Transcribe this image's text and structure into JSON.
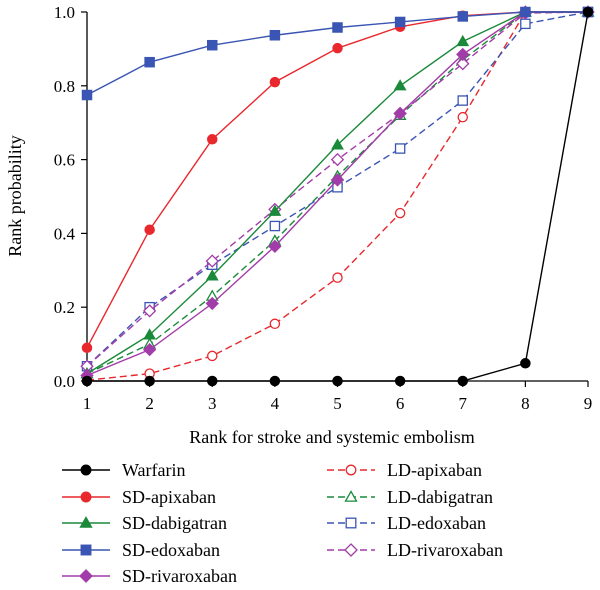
{
  "chart_data": {
    "type": "line",
    "xlabel": "Rank for stroke and systemic embolism",
    "ylabel": "Rank probability",
    "x": [
      1,
      2,
      3,
      4,
      5,
      6,
      7,
      8,
      9
    ],
    "xlim": [
      1,
      9
    ],
    "ylim": [
      0,
      1
    ],
    "x_ticks": [
      "1",
      "2",
      "3",
      "4",
      "5",
      "6",
      "7",
      "8",
      "9"
    ],
    "y_ticks": [
      "0.0",
      "0.2",
      "0.4",
      "0.6",
      "0.8",
      "1.0"
    ],
    "grid": false,
    "legend_position": "bottom",
    "series": [
      {
        "name": "Warfarin",
        "color": "#000000",
        "marker": "circle",
        "filled": true,
        "dashed": false,
        "values": [
          0.0,
          0.0,
          0.0,
          0.0,
          0.0,
          0.0,
          0.0,
          0.048,
          1.0
        ]
      },
      {
        "name": "SD-apixaban",
        "color": "#e8282d",
        "marker": "circle",
        "filled": true,
        "dashed": false,
        "values": [
          0.09,
          0.41,
          0.655,
          0.81,
          0.902,
          0.96,
          0.99,
          1.0,
          1.0
        ]
      },
      {
        "name": "SD-dabigatran",
        "color": "#1a8a3a",
        "marker": "triangle",
        "filled": true,
        "dashed": false,
        "values": [
          0.02,
          0.125,
          0.285,
          0.46,
          0.64,
          0.8,
          0.92,
          1.0,
          1.0
        ]
      },
      {
        "name": "SD-edoxaban",
        "color": "#3a55b4",
        "marker": "square",
        "filled": true,
        "dashed": false,
        "values": [
          0.775,
          0.864,
          0.91,
          0.937,
          0.958,
          0.973,
          0.988,
          1.0,
          1.0
        ]
      },
      {
        "name": "SD-rivaroxaban",
        "color": "#a23ca8",
        "marker": "diamond",
        "filled": true,
        "dashed": false,
        "values": [
          0.015,
          0.085,
          0.21,
          0.365,
          0.545,
          0.725,
          0.885,
          1.0,
          1.0
        ]
      },
      {
        "name": "LD-apixaban",
        "color": "#e8282d",
        "marker": "circle",
        "filled": false,
        "dashed": true,
        "values": [
          0.002,
          0.02,
          0.068,
          0.155,
          0.28,
          0.455,
          0.715,
          1.0,
          1.0
        ]
      },
      {
        "name": "LD-dabigatran",
        "color": "#1a8a3a",
        "marker": "triangle",
        "filled": false,
        "dashed": true,
        "values": [
          0.02,
          0.1,
          0.23,
          0.38,
          0.555,
          0.72,
          0.87,
          1.0,
          1.0
        ]
      },
      {
        "name": "LD-edoxaban",
        "color": "#3a55b4",
        "marker": "square",
        "filled": false,
        "dashed": true,
        "values": [
          0.04,
          0.2,
          0.315,
          0.42,
          0.525,
          0.63,
          0.76,
          0.968,
          1.0
        ]
      },
      {
        "name": "LD-rivaroxaban",
        "color": "#a23ca8",
        "marker": "diamond",
        "filled": false,
        "dashed": true,
        "values": [
          0.04,
          0.19,
          0.325,
          0.465,
          0.6,
          0.725,
          0.86,
          0.997,
          1.0
        ]
      }
    ]
  }
}
